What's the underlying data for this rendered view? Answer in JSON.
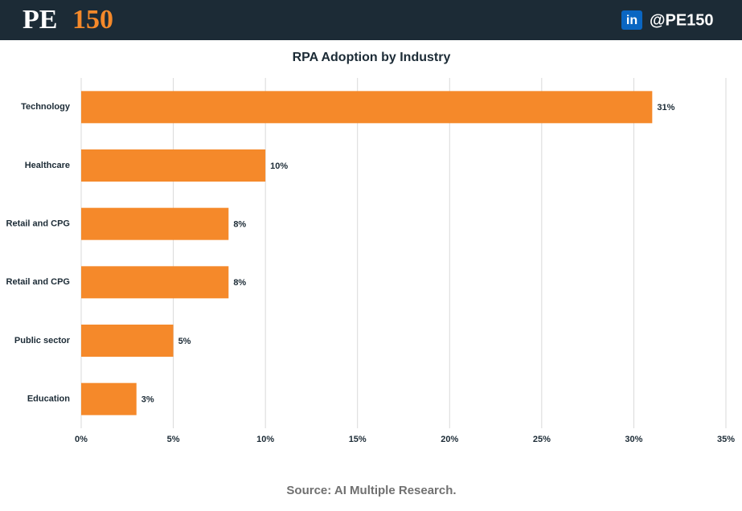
{
  "header": {
    "logo": [
      "PE",
      "150"
    ],
    "icon": "in",
    "handle": "@PE150"
  },
  "chart_data": {
    "type": "hbar",
    "title": "RPA Adoption by Industry",
    "categories": [
      "Technology",
      "Healthcare",
      "Retail and CPG",
      "Retail and CPG",
      "Public sector",
      "Education"
    ],
    "values": [
      31,
      10,
      8,
      8,
      5,
      3
    ],
    "value_labels": [
      "31%",
      "10%",
      "8%",
      "8%",
      "5%",
      "3%"
    ],
    "color": "#f5892a",
    "xlim": [
      0,
      35
    ],
    "xticks": [
      {
        "value": 0,
        "label": "0%"
      },
      {
        "value": 5,
        "label": "5%"
      },
      {
        "value": 10,
        "label": "10%"
      },
      {
        "value": 15,
        "label": "15%"
      },
      {
        "value": 20,
        "label": "20%"
      },
      {
        "value": 25,
        "label": "25%"
      },
      {
        "value": 30,
        "label": "30%"
      },
      {
        "value": 35,
        "label": "35%"
      }
    ],
    "grid": true,
    "source": "Source: AI Multiple Research."
  }
}
